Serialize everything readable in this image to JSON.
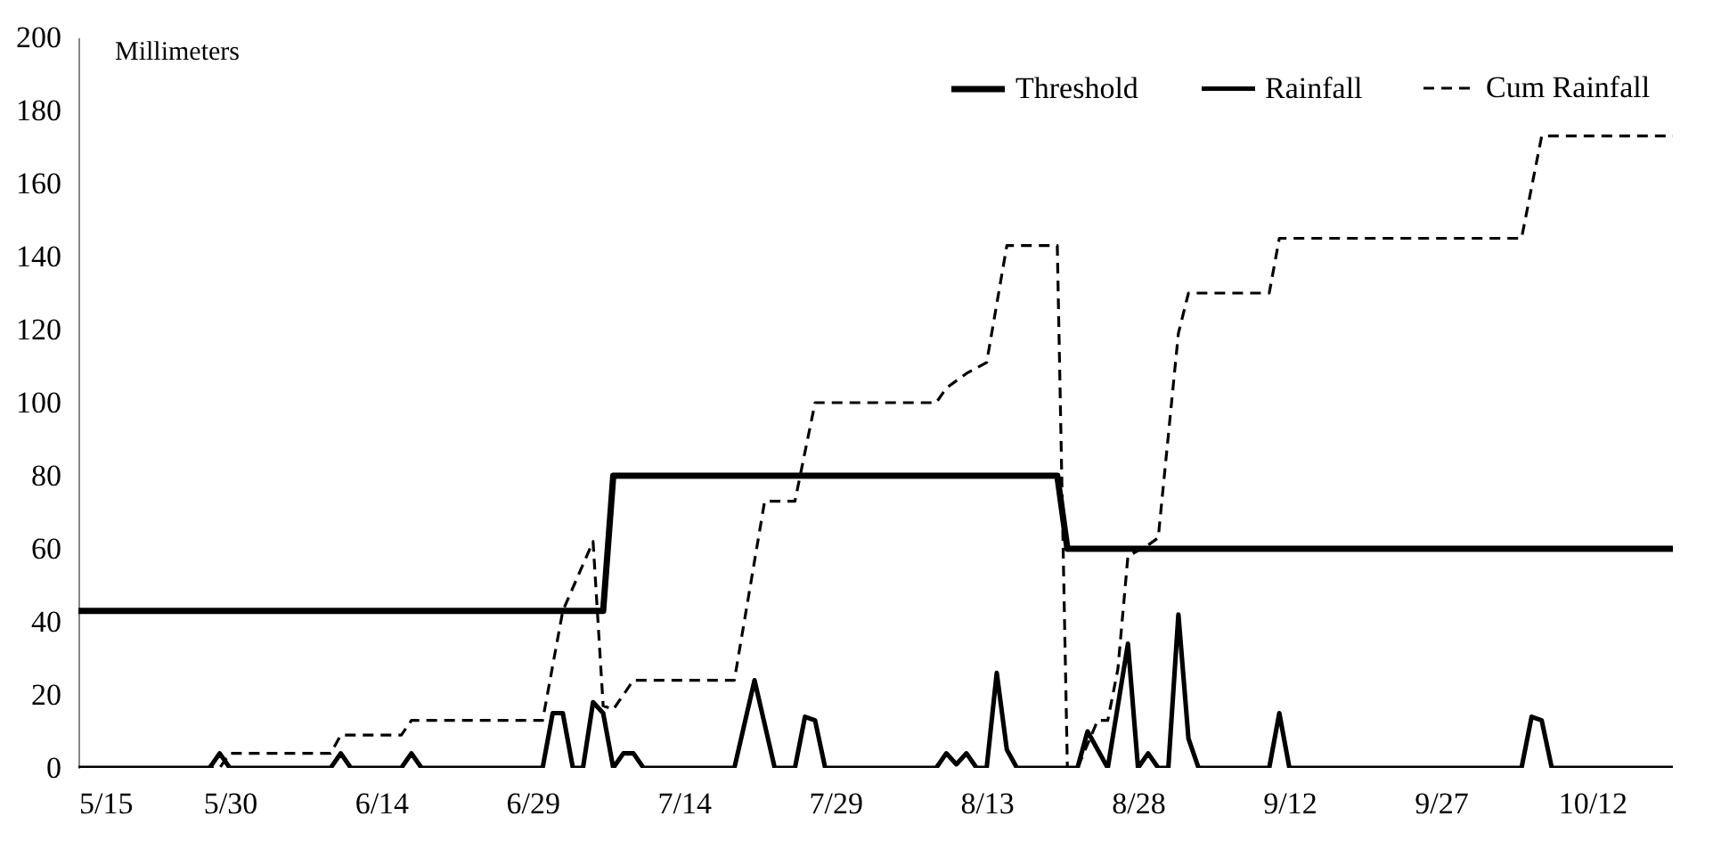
{
  "chart_data": {
    "type": "line",
    "ylabel": "Millimeters",
    "xlim": [
      "--05-15",
      "--10-20"
    ],
    "xticks": [
      {
        "value": "--05-15",
        "label": "5/15"
      },
      {
        "value": "--05-30",
        "label": "5/30"
      },
      {
        "value": "--06-14",
        "label": "6/14"
      },
      {
        "value": "--06-29",
        "label": "6/29"
      },
      {
        "value": "--07-14",
        "label": "7/14"
      },
      {
        "value": "--07-29",
        "label": "7/29"
      },
      {
        "value": "--08-13",
        "label": "8/13"
      },
      {
        "value": "--08-28",
        "label": "8/28"
      },
      {
        "value": "--09-12",
        "label": "9/12"
      },
      {
        "value": "--09-27",
        "label": "9/27"
      },
      {
        "value": "--10-12",
        "label": "10/12"
      }
    ],
    "ylim": [
      0,
      200
    ],
    "yticks": [
      0,
      20,
      40,
      60,
      80,
      100,
      120,
      140,
      160,
      180,
      200
    ],
    "grid": false,
    "legend": "top right",
    "marker": "none",
    "series": [
      {
        "name": "Threshold",
        "color": "#000000",
        "line_style": "solid",
        "x": [
          "--05-15",
          "--07-06",
          "--07-07",
          "--08-20",
          "--08-21",
          "--10-20"
        ],
        "values": [
          43,
          43,
          80,
          80,
          60,
          60
        ]
      },
      {
        "name": "Rainfall",
        "color": "#000000",
        "line_style": "solid",
        "x": [
          "--05-15",
          "--05-28",
          "--05-29",
          "--05-30",
          "--06-09",
          "--06-10",
          "--06-11",
          "--06-16",
          "--06-17",
          "--06-18",
          "--06-30",
          "--07-01",
          "--07-02",
          "--07-03",
          "--07-04",
          "--07-05",
          "--07-06",
          "--07-07",
          "--07-08",
          "--07-09",
          "--07-10",
          "--07-19",
          "--07-20",
          "--07-21",
          "--07-22",
          "--07-23",
          "--07-25",
          "--07-26",
          "--07-27",
          "--07-28",
          "--08-08",
          "--08-09",
          "--08-10",
          "--08-11",
          "--08-12",
          "--08-13",
          "--08-14",
          "--08-15",
          "--08-16",
          "--08-22",
          "--08-23",
          "--08-24",
          "--08-25",
          "--08-27",
          "--08-28",
          "--08-29",
          "--08-30",
          "--08-31",
          "--09-01",
          "--09-02",
          "--09-03",
          "--09-10",
          "--09-11",
          "--09-12",
          "--10-05",
          "--10-06",
          "--10-07",
          "--10-08",
          "--10-20"
        ],
        "values": [
          0,
          0,
          4,
          0,
          0,
          4,
          0,
          0,
          4,
          0,
          0,
          15,
          15,
          0,
          0,
          18,
          15,
          0,
          4,
          4,
          0,
          0,
          12,
          24,
          12,
          0,
          0,
          14,
          13,
          0,
          0,
          4,
          1,
          4,
          0,
          0,
          26,
          5,
          0,
          0,
          10,
          5,
          0,
          34,
          0,
          4,
          0,
          0,
          42,
          8,
          0,
          0,
          15,
          0,
          0,
          14,
          13,
          0,
          0
        ]
      },
      {
        "name": "Cum Rainfall",
        "color": "#000000",
        "line_style": "dashed",
        "x": [
          "--05-15",
          "--05-29",
          "--05-30",
          "--06-09",
          "--06-10",
          "--06-16",
          "--06-17",
          "--06-30",
          "--07-01",
          "--07-02",
          "--07-05",
          "--07-06",
          "--07-07",
          "--07-09",
          "--07-19",
          "--07-22",
          "--07-25",
          "--07-27",
          "--08-08",
          "--08-09",
          "--08-11",
          "--08-13",
          "--08-15",
          "--08-20",
          "--08-21",
          "--08-22",
          "--08-24",
          "--08-25",
          "--08-26",
          "--08-27",
          "--08-29",
          "--08-30",
          "--09-01",
          "--09-02",
          "--09-10",
          "--09-11",
          "--10-05",
          "--10-07",
          "--10-20"
        ],
        "values": [
          0,
          0,
          4,
          4,
          9,
          9,
          13,
          13,
          28,
          43,
          62,
          17,
          16,
          24,
          24,
          73,
          73,
          100,
          100,
          104,
          108,
          111,
          143,
          143,
          0,
          0,
          13,
          13,
          27,
          58,
          61,
          63,
          119,
          130,
          130,
          145,
          145,
          173,
          173
        ]
      }
    ]
  }
}
